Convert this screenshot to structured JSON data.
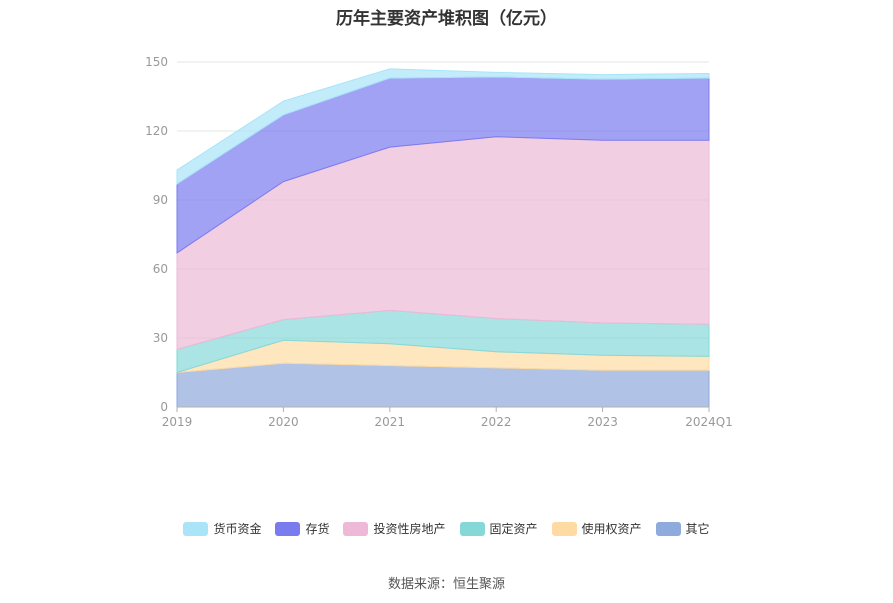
{
  "chart_data": {
    "type": "area",
    "stacked": true,
    "title": "历年主要资产堆积图（亿元）",
    "categories": [
      "2019",
      "2020",
      "2021",
      "2022",
      "2023",
      "2024Q1"
    ],
    "ylim": [
      0,
      150
    ],
    "yticks": [
      0,
      30,
      60,
      90,
      120,
      150
    ],
    "grid": true,
    "legend_position": "bottom",
    "series": [
      {
        "name": "其它",
        "color": "#8FAADC",
        "values": [
          15,
          19,
          18,
          17,
          16,
          16
        ]
      },
      {
        "name": "使用权资产",
        "color": "#FDDBA2",
        "values": [
          0,
          10,
          9.5,
          7,
          6.5,
          6
        ]
      },
      {
        "name": "固定资产",
        "color": "#86D8D8",
        "values": [
          10,
          9,
          14.5,
          14.5,
          14,
          14
        ]
      },
      {
        "name": "投资性房地产",
        "color": "#EDB9D6",
        "values": [
          42,
          60,
          71,
          79,
          79.5,
          80
        ]
      },
      {
        "name": "存货",
        "color": "#7B7BF0",
        "values": [
          30,
          29,
          30,
          26,
          26.5,
          27
        ]
      },
      {
        "name": "货币资金",
        "color": "#A9E4F8",
        "values": [
          6,
          6,
          4,
          2,
          2,
          2
        ]
      }
    ],
    "legend_order": [
      "货币资金",
      "存货",
      "投资性房地产",
      "固定资产",
      "使用权资产",
      "其它"
    ]
  },
  "source": "数据来源：恒生聚源"
}
